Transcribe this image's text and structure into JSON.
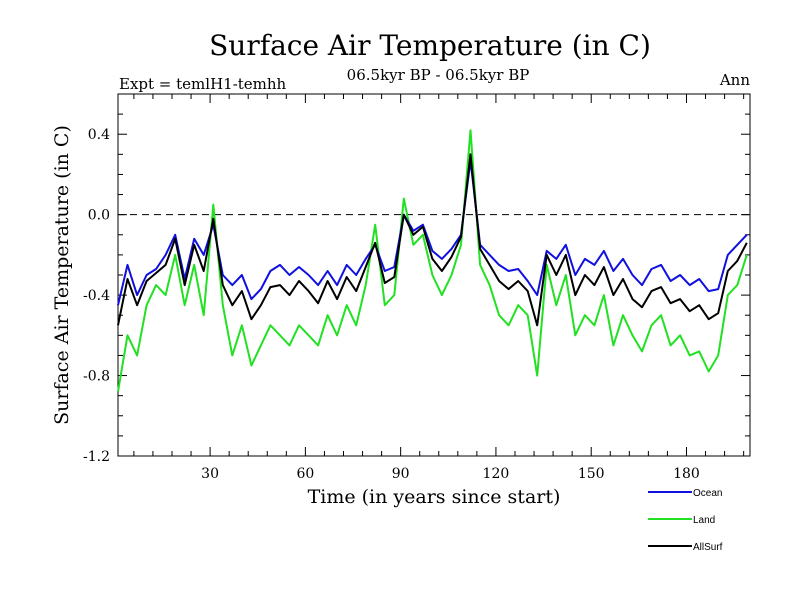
{
  "chart_data": {
    "type": "line",
    "title": "Surface Air Temperature (in C)",
    "subtitle_left": "Expt = temlH1-temhh",
    "subtitle_center": "06.5kyr BP - 06.5kyr BP",
    "subtitle_right": "Ann",
    "xlabel": "Time (in years since start)",
    "ylabel": "Surface Air Temperature (in C)",
    "xlim": [
      1,
      200
    ],
    "ylim": [
      -1.2,
      0.6
    ],
    "xticks": [
      30,
      60,
      90,
      120,
      150,
      180
    ],
    "yticks": [
      -1.2,
      -0.8,
      -0.4,
      0.0,
      0.4
    ],
    "ytick_labels": [
      "-1.2",
      "-0.8",
      "-0.4",
      "0.0",
      "0.4"
    ],
    "zero_line": 0.0,
    "x": [
      1,
      4,
      7,
      10,
      13,
      16,
      19,
      22,
      25,
      28,
      31,
      34,
      37,
      40,
      43,
      46,
      49,
      52,
      55,
      58,
      61,
      64,
      67,
      70,
      73,
      76,
      79,
      82,
      85,
      88,
      91,
      94,
      97,
      100,
      103,
      106,
      109,
      112,
      115,
      118,
      121,
      124,
      127,
      130,
      133,
      136,
      139,
      142,
      145,
      148,
      151,
      154,
      157,
      160,
      163,
      166,
      169,
      172,
      175,
      178,
      181,
      184,
      187,
      190,
      193,
      196,
      199
    ],
    "series": [
      {
        "name": "Ocean",
        "color": "#1010e0",
        "values": [
          -0.45,
          -0.25,
          -0.4,
          -0.3,
          -0.27,
          -0.2,
          -0.1,
          -0.32,
          -0.12,
          -0.2,
          -0.05,
          -0.3,
          -0.35,
          -0.3,
          -0.42,
          -0.37,
          -0.28,
          -0.25,
          -0.3,
          -0.26,
          -0.3,
          -0.35,
          -0.28,
          -0.35,
          -0.25,
          -0.3,
          -0.22,
          -0.15,
          -0.28,
          -0.26,
          0.0,
          -0.08,
          -0.05,
          -0.18,
          -0.22,
          -0.17,
          -0.1,
          0.27,
          -0.15,
          -0.2,
          -0.25,
          -0.28,
          -0.27,
          -0.33,
          -0.4,
          -0.18,
          -0.22,
          -0.15,
          -0.3,
          -0.22,
          -0.25,
          -0.18,
          -0.28,
          -0.22,
          -0.3,
          -0.35,
          -0.27,
          -0.25,
          -0.33,
          -0.3,
          -0.35,
          -0.32,
          -0.38,
          -0.37,
          -0.2,
          -0.15,
          -0.1
        ]
      },
      {
        "name": "Land",
        "color": "#22e022",
        "values": [
          -0.88,
          -0.6,
          -0.7,
          -0.45,
          -0.35,
          -0.4,
          -0.2,
          -0.45,
          -0.25,
          -0.5,
          0.05,
          -0.45,
          -0.7,
          -0.55,
          -0.75,
          -0.65,
          -0.55,
          -0.6,
          -0.65,
          -0.55,
          -0.6,
          -0.65,
          -0.5,
          -0.6,
          -0.45,
          -0.55,
          -0.35,
          -0.05,
          -0.45,
          -0.4,
          0.08,
          -0.15,
          -0.1,
          -0.3,
          -0.4,
          -0.3,
          -0.15,
          0.42,
          -0.25,
          -0.35,
          -0.5,
          -0.55,
          -0.45,
          -0.5,
          -0.8,
          -0.25,
          -0.45,
          -0.3,
          -0.6,
          -0.5,
          -0.55,
          -0.4,
          -0.65,
          -0.5,
          -0.6,
          -0.68,
          -0.55,
          -0.5,
          -0.65,
          -0.6,
          -0.7,
          -0.68,
          -0.78,
          -0.7,
          -0.4,
          -0.35,
          -0.2
        ]
      },
      {
        "name": "AllSurf",
        "color": "#000000",
        "values": [
          -0.55,
          -0.32,
          -0.45,
          -0.33,
          -0.29,
          -0.25,
          -0.12,
          -0.35,
          -0.15,
          -0.28,
          -0.02,
          -0.35,
          -0.45,
          -0.38,
          -0.52,
          -0.45,
          -0.36,
          -0.35,
          -0.4,
          -0.33,
          -0.38,
          -0.44,
          -0.33,
          -0.42,
          -0.31,
          -0.38,
          -0.26,
          -0.14,
          -0.34,
          -0.31,
          0.0,
          -0.1,
          -0.06,
          -0.22,
          -0.28,
          -0.21,
          -0.11,
          0.3,
          -0.17,
          -0.25,
          -0.33,
          -0.37,
          -0.33,
          -0.38,
          -0.55,
          -0.2,
          -0.3,
          -0.2,
          -0.4,
          -0.3,
          -0.35,
          -0.26,
          -0.4,
          -0.32,
          -0.42,
          -0.46,
          -0.38,
          -0.36,
          -0.44,
          -0.42,
          -0.48,
          -0.45,
          -0.52,
          -0.49,
          -0.28,
          -0.23,
          -0.14
        ]
      }
    ]
  }
}
